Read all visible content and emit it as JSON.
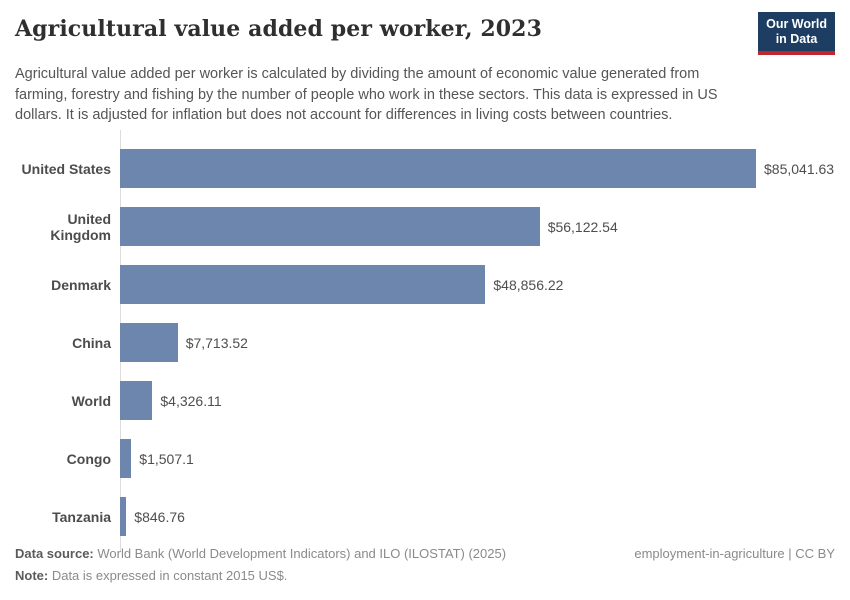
{
  "header": {
    "title": "Agricultural value added per worker, 2023",
    "subtitle": "Agricultural value added per worker is calculated by dividing the amount of economic value generated from farming, forestry and fishing by the number of people who work in these sectors. This data is expressed in US dollars. It is adjusted for inflation but does not account for differences in living costs between countries.",
    "logo": {
      "line1": "Our World",
      "line2": "in Data",
      "bg_color": "#1d3d63",
      "stripe_color": "#c0262d"
    }
  },
  "chart_data": {
    "type": "bar",
    "orientation": "horizontal",
    "title": "Agricultural value added per worker, 2023",
    "categories": [
      "United States",
      "United Kingdom",
      "Denmark",
      "China",
      "World",
      "Congo",
      "Tanzania"
    ],
    "values": [
      85041.63,
      56122.54,
      48856.22,
      7713.52,
      4326.11,
      1507.1,
      846.76
    ],
    "value_labels": [
      "$85,041.63",
      "$56,122.54",
      "$48,856.22",
      "$7,713.52",
      "$4,326.11",
      "$1,507.1",
      "$846.76"
    ],
    "xlabel": "",
    "ylabel": "",
    "xlim": [
      0,
      85041.63
    ],
    "unit": "constant 2015 US$",
    "bar_color": "#6d86ae",
    "grid": false,
    "legend": "none"
  },
  "footer": {
    "source_label": "Data source:",
    "source_text": " World Bank (World Development Indicators) and ILO (ILOSTAT) (2025)",
    "note_label": "Note:",
    "note_text": " Data is expressed in constant 2015 US$.",
    "rights": "employment-in-agriculture | CC BY"
  }
}
